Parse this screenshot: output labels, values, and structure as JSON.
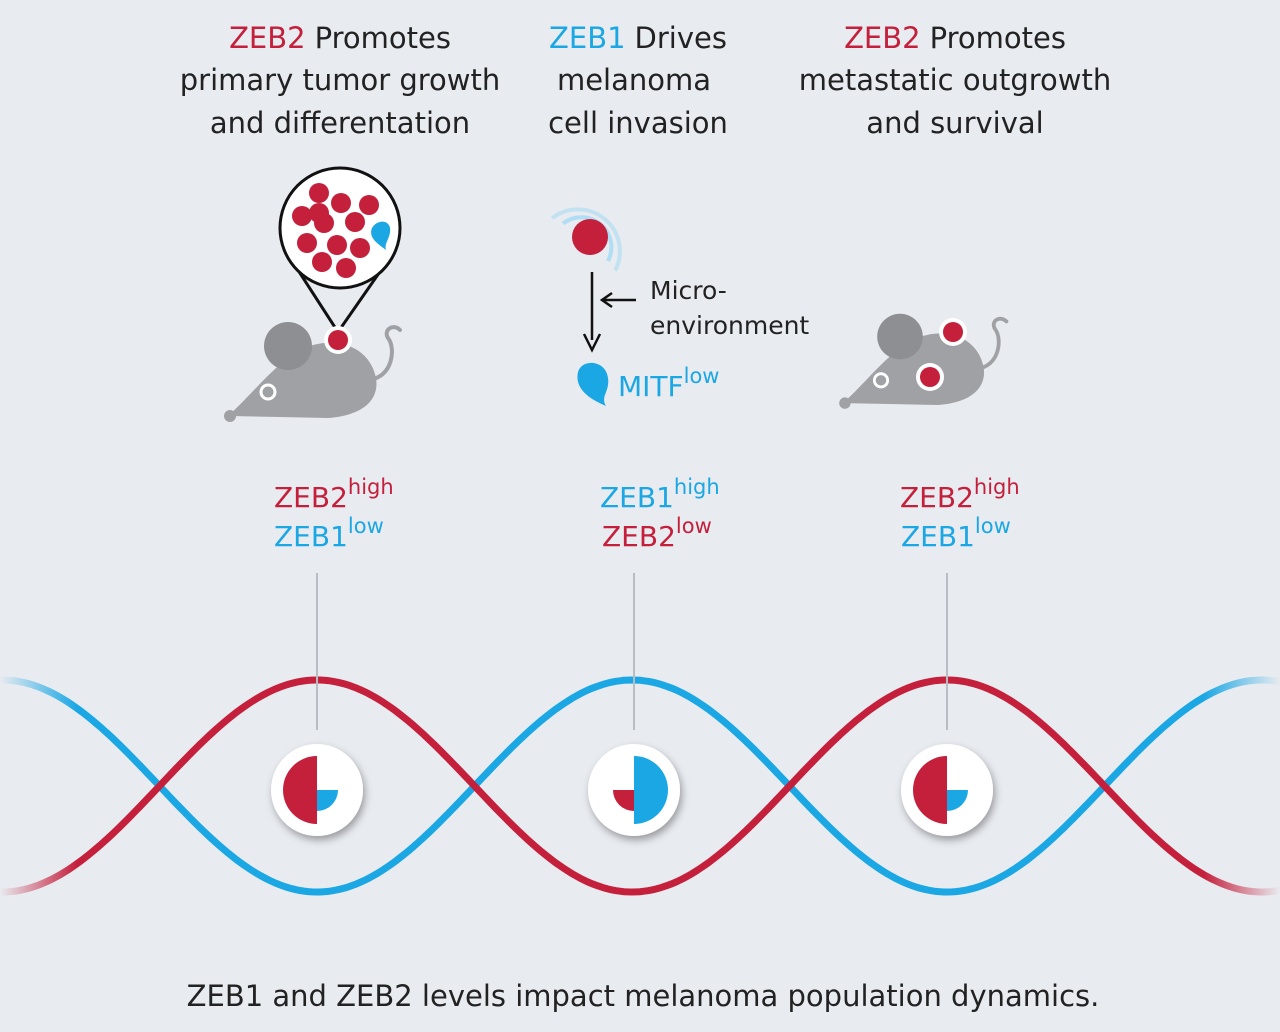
{
  "panels": [
    {
      "heading": {
        "gene": "ZEB2",
        "rest": "Promotes"
      },
      "lines": [
        "primary tumor growth",
        "and differentation"
      ],
      "markers": {
        "first": {
          "gene": "ZEB2",
          "level": "high"
        },
        "second": {
          "gene": "ZEB1",
          "level": "low"
        }
      }
    },
    {
      "heading": {
        "gene": "ZEB1",
        "rest": "Drives"
      },
      "lines": [
        "melanoma",
        "cell invasion"
      ],
      "markers": {
        "first": {
          "gene": "ZEB1",
          "level": "high"
        },
        "second": {
          "gene": "ZEB2",
          "level": "low"
        }
      }
    },
    {
      "heading": {
        "gene": "ZEB2",
        "rest": "Promotes"
      },
      "lines": [
        "metastatic outgrowth",
        "and survival"
      ],
      "markers": {
        "first": {
          "gene": "ZEB2",
          "level": "high"
        },
        "second": {
          "gene": "ZEB1",
          "level": "low"
        }
      }
    }
  ],
  "microenvironment": {
    "lines": [
      "Micro-",
      "environment"
    ],
    "result": {
      "gene": "MITF",
      "level": "low"
    }
  },
  "caption": "ZEB1 and ZEB2 levels impact melanoma population dynamics."
}
